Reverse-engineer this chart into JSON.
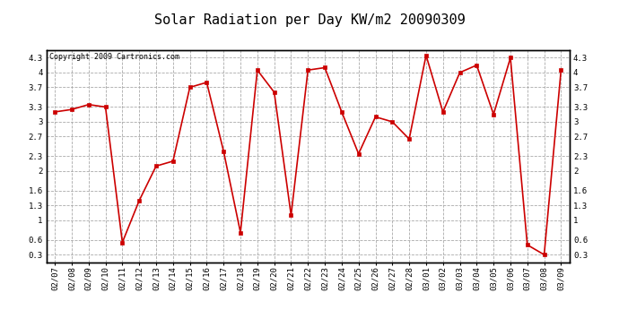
{
  "title": "Solar Radiation per Day KW/m2 20090309",
  "copyright": "Copyright 2009 Cartronics.com",
  "dates": [
    "02/07",
    "02/08",
    "02/09",
    "02/10",
    "02/11",
    "02/12",
    "02/13",
    "02/14",
    "02/15",
    "02/16",
    "02/17",
    "02/18",
    "02/19",
    "02/20",
    "02/21",
    "02/22",
    "02/23",
    "02/24",
    "02/25",
    "02/26",
    "02/27",
    "02/28",
    "03/01",
    "03/02",
    "03/03",
    "03/04",
    "03/05",
    "03/06",
    "03/07",
    "03/08",
    "03/09"
  ],
  "values": [
    3.2,
    3.25,
    3.35,
    3.3,
    0.55,
    1.4,
    2.1,
    2.2,
    3.7,
    3.8,
    2.4,
    0.75,
    4.05,
    3.6,
    1.1,
    4.05,
    4.1,
    3.2,
    2.35,
    3.1,
    3.0,
    2.65,
    4.35,
    3.2,
    4.0,
    4.15,
    3.15,
    4.3,
    0.5,
    0.3,
    4.05
  ],
  "line_color": "#cc0000",
  "marker_color": "#cc0000",
  "bg_color": "#ffffff",
  "plot_bg_color": "#ffffff",
  "grid_color": "#aaaaaa",
  "ylim_min": 0.15,
  "ylim_max": 4.45,
  "yticks": [
    0.3,
    0.6,
    1.0,
    1.3,
    1.6,
    2.0,
    2.3,
    2.7,
    3.0,
    3.3,
    3.7,
    4.0,
    4.3
  ],
  "title_fontsize": 11,
  "copyright_fontsize": 6,
  "tick_fontsize": 6.5
}
